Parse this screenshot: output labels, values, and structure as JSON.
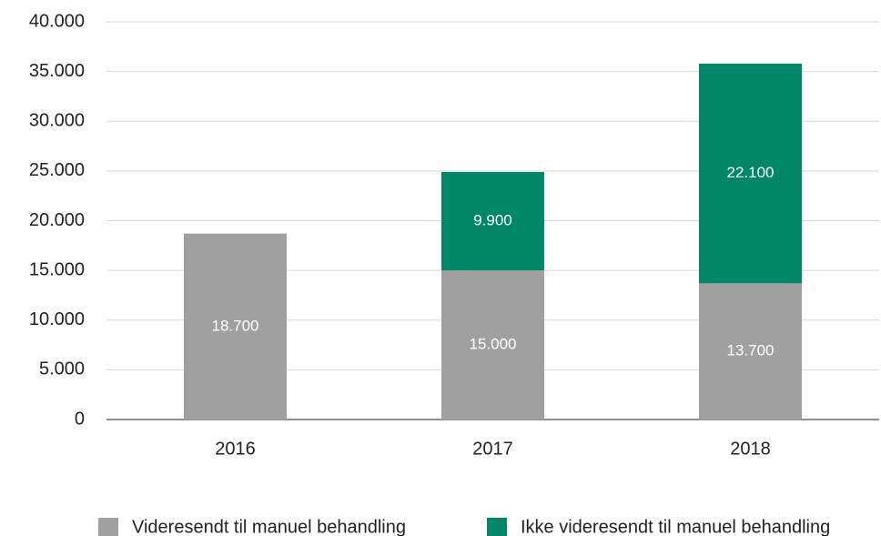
{
  "chart_data": {
    "type": "stacked-bar",
    "categories": [
      "2016",
      "2017",
      "2018"
    ],
    "series": [
      {
        "name": "Videresendt til manuel behandling",
        "color": "#a0a0a0",
        "values": [
          18700,
          15000,
          13700
        ],
        "value_labels": [
          "18.700",
          "15.000",
          "13.700"
        ]
      },
      {
        "name": "Ikke videresendt til manuel behandling",
        "color": "#008766",
        "values": [
          null,
          9900,
          22100
        ],
        "value_labels": [
          null,
          "9.900",
          "22.100"
        ]
      }
    ],
    "ylim": [
      0,
      40000
    ],
    "yticks": [
      0,
      {
        "value": 5000,
        "label": "5.000"
      },
      {
        "value": 10000,
        "label": "10.000"
      },
      {
        "value": 15000,
        "label": "15.000"
      },
      {
        "value": 20000,
        "label": "20.000"
      },
      {
        "value": 25000,
        "label": "25.000"
      },
      {
        "value": 30000,
        "label": "30.000"
      },
      {
        "value": 35000,
        "label": "35.000"
      },
      {
        "value": 40000,
        "label": "40.000"
      }
    ],
    "grid": true,
    "legend": "bottom"
  }
}
